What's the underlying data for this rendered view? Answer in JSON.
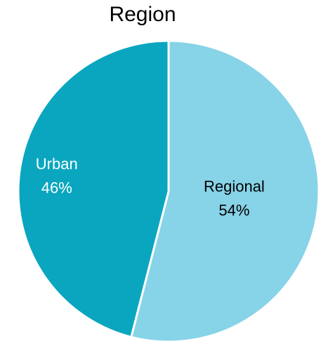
{
  "chart_data": {
    "type": "pie",
    "title": "Region",
    "categories": [
      "Regional",
      "Urban"
    ],
    "values": [
      54,
      46
    ],
    "value_labels": [
      "54%",
      "46%"
    ],
    "colors": [
      "#87d3e8",
      "#0aa6bf"
    ]
  }
}
